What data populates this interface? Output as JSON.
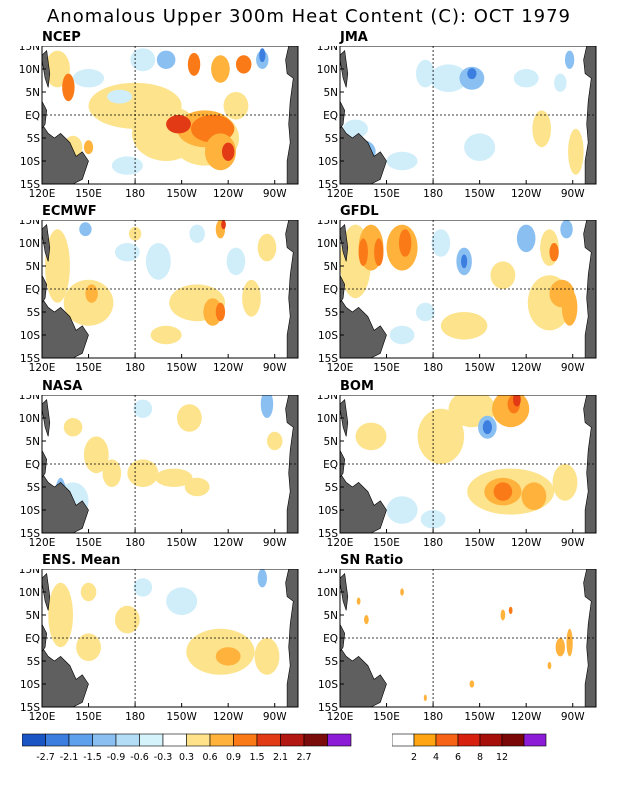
{
  "title": "Anomalous Upper 300m Heat Content (C): OCT 1979",
  "panels": [
    {
      "label": "NCEP"
    },
    {
      "label": "JMA"
    },
    {
      "label": "ECMWF"
    },
    {
      "label": "GFDL"
    },
    {
      "label": "NASA"
    },
    {
      "label": "BOM"
    },
    {
      "label": "ENS. Mean"
    },
    {
      "label": "SN Ratio"
    }
  ],
  "lat_labels": [
    "15N",
    "10N",
    "5N",
    "EQ",
    "5S",
    "10S",
    "15S"
  ],
  "lon_labels": [
    "120E",
    "150E",
    "180",
    "150W",
    "120W",
    "90W"
  ],
  "anomaly_colorbar": {
    "labels": [
      "-2.7",
      "-2.1",
      "-1.5",
      "-0.9",
      "-0.6",
      "-0.3",
      "0.3",
      "0.6",
      "0.9",
      "1.5",
      "2.1",
      "2.7"
    ],
    "colors": [
      "#1a55c4",
      "#3c7ee0",
      "#5fa0ec",
      "#8abff2",
      "#b3dcf7",
      "#d5f3fb",
      "#ffffff",
      "#ffe28a",
      "#ffb23c",
      "#fb7a18",
      "#e33a16",
      "#b31812",
      "#7a0c0c",
      "#8c1cd6"
    ]
  },
  "sn_colorbar": {
    "labels": [
      "2",
      "4",
      "6",
      "8",
      "12"
    ],
    "colors": [
      "#ffffff",
      "#ffa412",
      "#f86416",
      "#d8200f",
      "#a70f0a",
      "#7a0707",
      "#8c1cd6"
    ]
  },
  "colors": {
    "land": "#5f5f5f",
    "yellow": "#fde38c",
    "orange": "#ffb23c",
    "dark_orange": "#fb7a18",
    "red": "#e33a16",
    "light_blue": "#cfeefa",
    "mid_blue": "#8abff2",
    "blue": "#3c7ee0"
  }
}
